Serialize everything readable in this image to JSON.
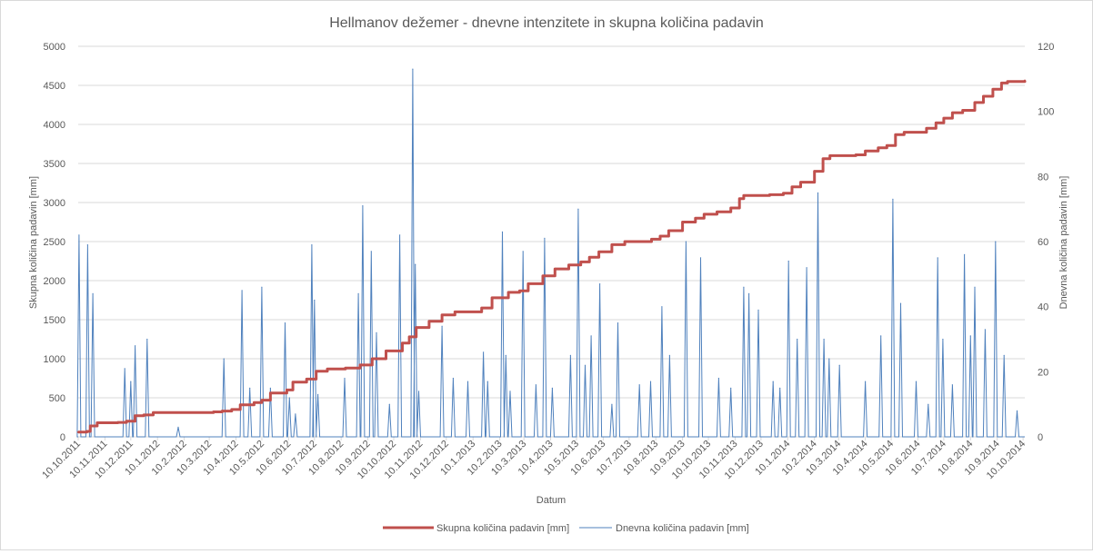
{
  "chart_data": {
    "type": "line",
    "title": "Hellmanov dežemer - dnevne intenzitete in skupna količina padavin",
    "xlabel": "Datum",
    "ylabel_left": "Skupna količina padavin [mm]",
    "ylabel_right": "Dnevna količina padavin [mm]",
    "x_start": "2011-10-10",
    "x_end": "2014-10-12",
    "x_tick_labels": [
      "10.10.2011",
      "10.11.2011",
      "10.12.2011",
      "10.1.2012",
      "10.2.2012",
      "10.3.2012",
      "10.4.2012",
      "10.5.2012",
      "10.6.2012",
      "10.7.2012",
      "10.8.2012",
      "10.9.2012",
      "10.10.2012",
      "10.11.2012",
      "10.12.2012",
      "10.1.2013",
      "10.2.2013",
      "10.3.2013",
      "10.4.2013",
      "10.5.2013",
      "10.6.2013",
      "10.7.2013",
      "10.8.2013",
      "10.9.2013",
      "10.10.2013",
      "10.11.2013",
      "10.12.2013",
      "10.1.2014",
      "10.2.2014",
      "10.3.2014",
      "10.4.2014",
      "10.5.2014",
      "10.6.2014",
      "10.7.2014",
      "10.8.2014",
      "10.9.2014",
      "10.10.2014"
    ],
    "ylim_left": [
      0,
      5000
    ],
    "yticks_left": [
      0,
      500,
      1000,
      1500,
      2000,
      2500,
      3000,
      3500,
      4000,
      4500,
      5000
    ],
    "ylim_right": [
      0,
      120
    ],
    "yticks_right": [
      0,
      20,
      40,
      60,
      80,
      100,
      120
    ],
    "legend_position": "bottom",
    "grid": true,
    "series": [
      {
        "name": "Skupna količina padavin [mm]",
        "axis": "left",
        "color": "#c0504d",
        "points": [
          [
            "2011-10-10",
            60
          ],
          [
            "2011-10-20",
            70
          ],
          [
            "2011-10-24",
            140
          ],
          [
            "2011-11-01",
            180
          ],
          [
            "2011-11-25",
            185
          ],
          [
            "2011-12-05",
            200
          ],
          [
            "2011-12-15",
            270
          ],
          [
            "2011-12-25",
            280
          ],
          [
            "2012-01-05",
            310
          ],
          [
            "2012-02-01",
            312
          ],
          [
            "2012-03-15",
            320
          ],
          [
            "2012-03-25",
            330
          ],
          [
            "2012-04-05",
            350
          ],
          [
            "2012-04-15",
            410
          ],
          [
            "2012-05-01",
            440
          ],
          [
            "2012-05-10",
            470
          ],
          [
            "2012-05-20",
            560
          ],
          [
            "2012-06-08",
            600
          ],
          [
            "2012-06-15",
            700
          ],
          [
            "2012-07-01",
            740
          ],
          [
            "2012-07-12",
            840
          ],
          [
            "2012-07-25",
            870
          ],
          [
            "2012-08-15",
            880
          ],
          [
            "2012-09-01",
            920
          ],
          [
            "2012-09-15",
            1000
          ],
          [
            "2012-10-01",
            1100
          ],
          [
            "2012-10-20",
            1200
          ],
          [
            "2012-10-28",
            1280
          ],
          [
            "2012-11-05",
            1400
          ],
          [
            "2012-11-20",
            1480
          ],
          [
            "2012-12-05",
            1560
          ],
          [
            "2012-12-20",
            1600
          ],
          [
            "2013-01-20",
            1650
          ],
          [
            "2013-02-01",
            1780
          ],
          [
            "2013-02-20",
            1850
          ],
          [
            "2013-03-05",
            1870
          ],
          [
            "2013-03-15",
            1960
          ],
          [
            "2013-04-01",
            2060
          ],
          [
            "2013-04-15",
            2150
          ],
          [
            "2013-05-01",
            2200
          ],
          [
            "2013-05-15",
            2240
          ],
          [
            "2013-05-25",
            2300
          ],
          [
            "2013-06-05",
            2370
          ],
          [
            "2013-06-20",
            2460
          ],
          [
            "2013-07-05",
            2500
          ],
          [
            "2013-08-05",
            2530
          ],
          [
            "2013-08-15",
            2570
          ],
          [
            "2013-08-25",
            2640
          ],
          [
            "2013-09-10",
            2750
          ],
          [
            "2013-09-25",
            2800
          ],
          [
            "2013-10-05",
            2850
          ],
          [
            "2013-10-20",
            2880
          ],
          [
            "2013-11-05",
            2930
          ],
          [
            "2013-11-15",
            3050
          ],
          [
            "2013-11-20",
            3090
          ],
          [
            "2013-12-05",
            3090
          ],
          [
            "2013-12-20",
            3100
          ],
          [
            "2014-01-05",
            3120
          ],
          [
            "2014-01-15",
            3200
          ],
          [
            "2014-01-25",
            3260
          ],
          [
            "2014-02-10",
            3400
          ],
          [
            "2014-02-20",
            3560
          ],
          [
            "2014-02-28",
            3600
          ],
          [
            "2014-03-30",
            3610
          ],
          [
            "2014-04-10",
            3660
          ],
          [
            "2014-04-25",
            3700
          ],
          [
            "2014-05-05",
            3730
          ],
          [
            "2014-05-15",
            3870
          ],
          [
            "2014-05-25",
            3900
          ],
          [
            "2014-06-20",
            3950
          ],
          [
            "2014-07-01",
            4020
          ],
          [
            "2014-07-10",
            4080
          ],
          [
            "2014-07-20",
            4150
          ],
          [
            "2014-08-01",
            4180
          ],
          [
            "2014-08-15",
            4280
          ],
          [
            "2014-08-25",
            4360
          ],
          [
            "2014-09-05",
            4450
          ],
          [
            "2014-09-15",
            4530
          ],
          [
            "2014-09-22",
            4550
          ],
          [
            "2014-10-12",
            4560
          ]
        ]
      },
      {
        "name": "Dnevna količina padavin [mm]",
        "axis": "right",
        "color": "#4f81bd",
        "points": [
          [
            "2011-10-11",
            62
          ],
          [
            "2011-10-21",
            59
          ],
          [
            "2011-10-27",
            44
          ],
          [
            "2011-12-03",
            21
          ],
          [
            "2011-12-10",
            17
          ],
          [
            "2011-12-15",
            28
          ],
          [
            "2011-12-29",
            30
          ],
          [
            "2012-02-03",
            3
          ],
          [
            "2012-03-27",
            24
          ],
          [
            "2012-04-17",
            45
          ],
          [
            "2012-04-26",
            15
          ],
          [
            "2012-05-10",
            46
          ],
          [
            "2012-05-20",
            15
          ],
          [
            "2012-06-06",
            35
          ],
          [
            "2012-06-11",
            12
          ],
          [
            "2012-06-18",
            7
          ],
          [
            "2012-07-07",
            59
          ],
          [
            "2012-07-10",
            42
          ],
          [
            "2012-07-14",
            13
          ],
          [
            "2012-08-14",
            18
          ],
          [
            "2012-08-30",
            44
          ],
          [
            "2012-09-04",
            71
          ],
          [
            "2012-09-14",
            57
          ],
          [
            "2012-09-20",
            32
          ],
          [
            "2012-10-05",
            10
          ],
          [
            "2012-10-17",
            62
          ],
          [
            "2012-11-01",
            113
          ],
          [
            "2012-11-04",
            53
          ],
          [
            "2012-11-08",
            14
          ],
          [
            "2012-12-05",
            34
          ],
          [
            "2012-12-18",
            18
          ],
          [
            "2013-01-04",
            17
          ],
          [
            "2013-01-22",
            26
          ],
          [
            "2013-01-27",
            17
          ],
          [
            "2013-02-13",
            63
          ],
          [
            "2013-02-17",
            25
          ],
          [
            "2013-02-22",
            14
          ],
          [
            "2013-03-09",
            57
          ],
          [
            "2013-03-24",
            16
          ],
          [
            "2013-04-03",
            61
          ],
          [
            "2013-04-12",
            15
          ],
          [
            "2013-05-03",
            25
          ],
          [
            "2013-05-12",
            70
          ],
          [
            "2013-05-20",
            22
          ],
          [
            "2013-05-27",
            31
          ],
          [
            "2013-06-06",
            47
          ],
          [
            "2013-06-20",
            10
          ],
          [
            "2013-06-27",
            35
          ],
          [
            "2013-07-22",
            16
          ],
          [
            "2013-08-04",
            17
          ],
          [
            "2013-08-17",
            40
          ],
          [
            "2013-08-26",
            25
          ],
          [
            "2013-09-14",
            60
          ],
          [
            "2013-10-01",
            55
          ],
          [
            "2013-10-22",
            18
          ],
          [
            "2013-11-05",
            15
          ],
          [
            "2013-11-20",
            46
          ],
          [
            "2013-11-26",
            44
          ],
          [
            "2013-12-07",
            39
          ],
          [
            "2013-12-24",
            17
          ],
          [
            "2014-01-01",
            15
          ],
          [
            "2014-01-11",
            54
          ],
          [
            "2014-01-21",
            30
          ],
          [
            "2014-02-01",
            52
          ],
          [
            "2014-02-14",
            75
          ],
          [
            "2014-02-21",
            30
          ],
          [
            "2014-02-27",
            24
          ],
          [
            "2014-03-11",
            22
          ],
          [
            "2014-04-10",
            17
          ],
          [
            "2014-04-28",
            31
          ],
          [
            "2014-05-12",
            73
          ],
          [
            "2014-05-21",
            41
          ],
          [
            "2014-06-08",
            17
          ],
          [
            "2014-06-22",
            10
          ],
          [
            "2014-07-03",
            55
          ],
          [
            "2014-07-09",
            30
          ],
          [
            "2014-07-20",
            16
          ],
          [
            "2014-08-03",
            56
          ],
          [
            "2014-08-10",
            31
          ],
          [
            "2014-08-15",
            46
          ],
          [
            "2014-08-27",
            33
          ],
          [
            "2014-09-08",
            60
          ],
          [
            "2014-09-18",
            25
          ],
          [
            "2014-10-03",
            8
          ]
        ]
      }
    ]
  }
}
